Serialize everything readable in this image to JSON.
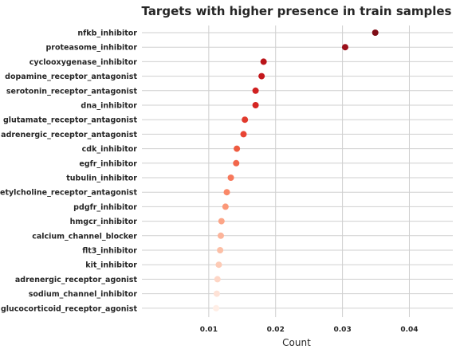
{
  "chart_data": {
    "type": "scatter",
    "title": "Targets with higher presence in train samples",
    "xlabel": "Count",
    "ylabel": "",
    "xlim": [
      0,
      0.0465
    ],
    "xticks": [
      "0.01",
      "0.02",
      "0.03",
      "0.04"
    ],
    "xtick_values": [
      0.01,
      0.02,
      0.03,
      0.04
    ],
    "grid": true,
    "colormap": "Reds",
    "categories": [
      "nfkb_inhibitor",
      "proteasome_inhibitor",
      "cyclooxygenase_inhibitor",
      "dopamine_receptor_antagonist",
      "serotonin_receptor_antagonist",
      "dna_inhibitor",
      "glutamate_receptor_antagonist",
      "adrenergic_receptor_antagonist",
      "cdk_inhibitor",
      "egfr_inhibitor",
      "tubulin_inhibitor",
      "acetylcholine_receptor_antagonist",
      "pdgfr_inhibitor",
      "hmgcr_inhibitor",
      "calcium_channel_blocker",
      "flt3_inhibitor",
      "kit_inhibitor",
      "adrenergic_receptor_agonist",
      "sodium_channel_inhibitor",
      "glucocorticoid_receptor_agonist"
    ],
    "values": [
      0.0349,
      0.0304,
      0.0182,
      0.0179,
      0.017,
      0.017,
      0.0154,
      0.0152,
      0.0142,
      0.0141,
      0.0133,
      0.0127,
      0.0125,
      0.0119,
      0.0118,
      0.0117,
      0.0115,
      0.0113,
      0.0112,
      0.0111
    ],
    "colors": [
      "#7f0d16",
      "#9b101a",
      "#b91419",
      "#c4171c",
      "#d02121",
      "#d52522",
      "#e13a2d",
      "#e84433",
      "#ee5b40",
      "#f2664b",
      "#f7785b",
      "#fa8868",
      "#fb9878",
      "#fca587",
      "#fcb49a",
      "#fcbfa6",
      "#fdcbb6",
      "#fed6c6",
      "#fee2d6",
      "#ffeee6"
    ]
  }
}
